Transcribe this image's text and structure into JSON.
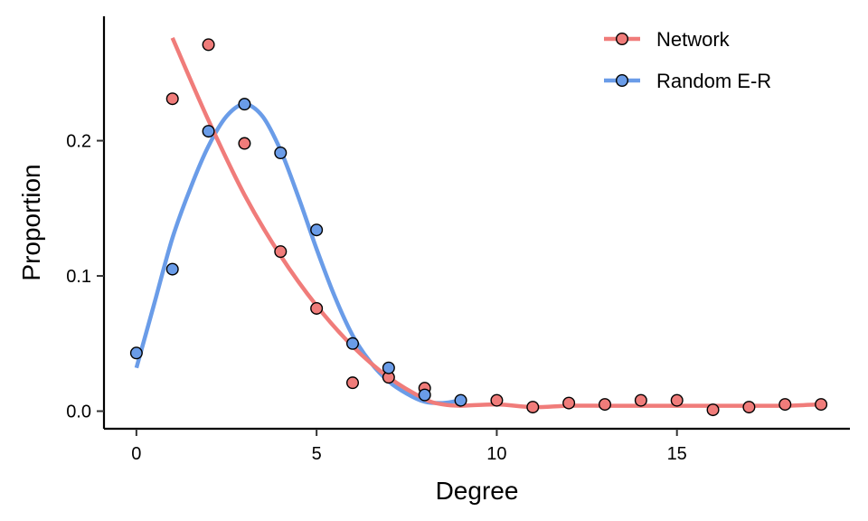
{
  "chart_data": {
    "type": "scatter",
    "title": "",
    "xlabel": "Degree",
    "ylabel": "Proportion",
    "xlim": [
      -0.9,
      19.8
    ],
    "ylim": [
      -0.013,
      0.292
    ],
    "xticks": [
      0,
      5,
      10,
      15
    ],
    "xtick_labels": [
      "0",
      "5",
      "10",
      "15"
    ],
    "yticks": [
      0.0,
      0.1,
      0.2
    ],
    "ytick_labels": [
      "0.0",
      "0.1",
      "0.2"
    ],
    "grid": false,
    "legend_position": "top-right",
    "series": [
      {
        "name": "Network",
        "color": "#F07C7A",
        "points": [
          {
            "x": 1,
            "y": 0.231
          },
          {
            "x": 2,
            "y": 0.271
          },
          {
            "x": 3,
            "y": 0.198
          },
          {
            "x": 4,
            "y": 0.118
          },
          {
            "x": 5,
            "y": 0.076
          },
          {
            "x": 6,
            "y": 0.021
          },
          {
            "x": 7,
            "y": 0.025
          },
          {
            "x": 8,
            "y": 0.017
          },
          {
            "x": 10,
            "y": 0.008
          },
          {
            "x": 11,
            "y": 0.003
          },
          {
            "x": 12,
            "y": 0.006
          },
          {
            "x": 13,
            "y": 0.005
          },
          {
            "x": 14,
            "y": 0.008
          },
          {
            "x": 15,
            "y": 0.008
          },
          {
            "x": 16,
            "y": 0.001
          },
          {
            "x": 17,
            "y": 0.003
          },
          {
            "x": 18,
            "y": 0.005
          },
          {
            "x": 19,
            "y": 0.005
          }
        ],
        "smooth": [
          {
            "x": 1,
            "y": 0.276
          },
          {
            "x": 2,
            "y": 0.215
          },
          {
            "x": 3,
            "y": 0.16
          },
          {
            "x": 4,
            "y": 0.115
          },
          {
            "x": 5,
            "y": 0.078
          },
          {
            "x": 6,
            "y": 0.048
          },
          {
            "x": 7,
            "y": 0.025
          },
          {
            "x": 8,
            "y": 0.009
          },
          {
            "x": 8.5,
            "y": 0.005
          },
          {
            "x": 9,
            "y": 0.004
          },
          {
            "x": 10,
            "y": 0.005
          },
          {
            "x": 11,
            "y": 0.003
          },
          {
            "x": 12,
            "y": 0.004
          },
          {
            "x": 13,
            "y": 0.004
          },
          {
            "x": 14,
            "y": 0.004
          },
          {
            "x": 15,
            "y": 0.004
          },
          {
            "x": 16,
            "y": 0.004
          },
          {
            "x": 17,
            "y": 0.004
          },
          {
            "x": 18,
            "y": 0.004
          },
          {
            "x": 19,
            "y": 0.005
          }
        ]
      },
      {
        "name": "Random E-R",
        "color": "#6A9CE8",
        "points": [
          {
            "x": 0,
            "y": 0.043
          },
          {
            "x": 1,
            "y": 0.105
          },
          {
            "x": 2,
            "y": 0.207
          },
          {
            "x": 3,
            "y": 0.227
          },
          {
            "x": 4,
            "y": 0.191
          },
          {
            "x": 5,
            "y": 0.134
          },
          {
            "x": 6,
            "y": 0.05
          },
          {
            "x": 7,
            "y": 0.032
          },
          {
            "x": 8,
            "y": 0.012
          },
          {
            "x": 9,
            "y": 0.008
          }
        ],
        "smooth": [
          {
            "x": 0,
            "y": 0.032
          },
          {
            "x": 0.5,
            "y": 0.08
          },
          {
            "x": 1,
            "y": 0.128
          },
          {
            "x": 1.5,
            "y": 0.165
          },
          {
            "x": 2,
            "y": 0.196
          },
          {
            "x": 2.5,
            "y": 0.218
          },
          {
            "x": 3,
            "y": 0.227
          },
          {
            "x": 3.5,
            "y": 0.218
          },
          {
            "x": 4,
            "y": 0.193
          },
          {
            "x": 4.5,
            "y": 0.158
          },
          {
            "x": 5,
            "y": 0.12
          },
          {
            "x": 5.5,
            "y": 0.085
          },
          {
            "x": 6,
            "y": 0.056
          },
          {
            "x": 6.5,
            "y": 0.036
          },
          {
            "x": 7,
            "y": 0.022
          },
          {
            "x": 7.5,
            "y": 0.013
          },
          {
            "x": 8,
            "y": 0.007
          },
          {
            "x": 8.5,
            "y": 0.006
          },
          {
            "x": 9,
            "y": 0.008
          }
        ]
      }
    ]
  }
}
